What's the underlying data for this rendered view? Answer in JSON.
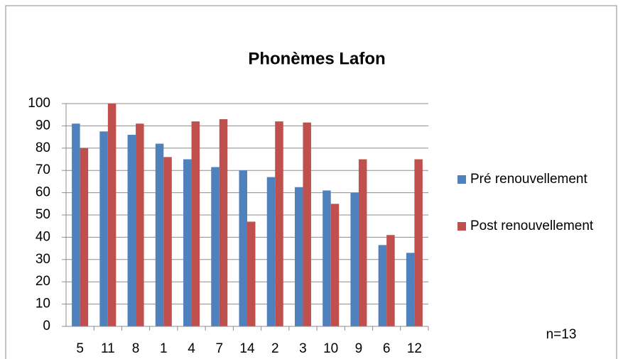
{
  "chart_data": {
    "type": "bar",
    "title": "Phonèmes Lafon",
    "categories": [
      "5",
      "11",
      "8",
      "1",
      "4",
      "7",
      "14",
      "2",
      "3",
      "10",
      "9",
      "6",
      "12"
    ],
    "series": [
      {
        "name": "Pré renouvellement",
        "color": "#4f81bd",
        "values": [
          91,
          87.5,
          86,
          82,
          75,
          71.5,
          70,
          67,
          62.5,
          61,
          60,
          36.5,
          33
        ]
      },
      {
        "name": "Post renouvellement",
        "color": "#c0504d",
        "values": [
          80,
          100,
          91,
          76,
          92,
          93,
          47,
          92,
          91.5,
          55,
          75,
          41,
          75
        ]
      }
    ],
    "ylim": [
      0,
      100
    ],
    "yticks": [
      0,
      10,
      20,
      30,
      40,
      50,
      60,
      70,
      80,
      90,
      100
    ],
    "grid": true,
    "annotation": "n=13"
  }
}
